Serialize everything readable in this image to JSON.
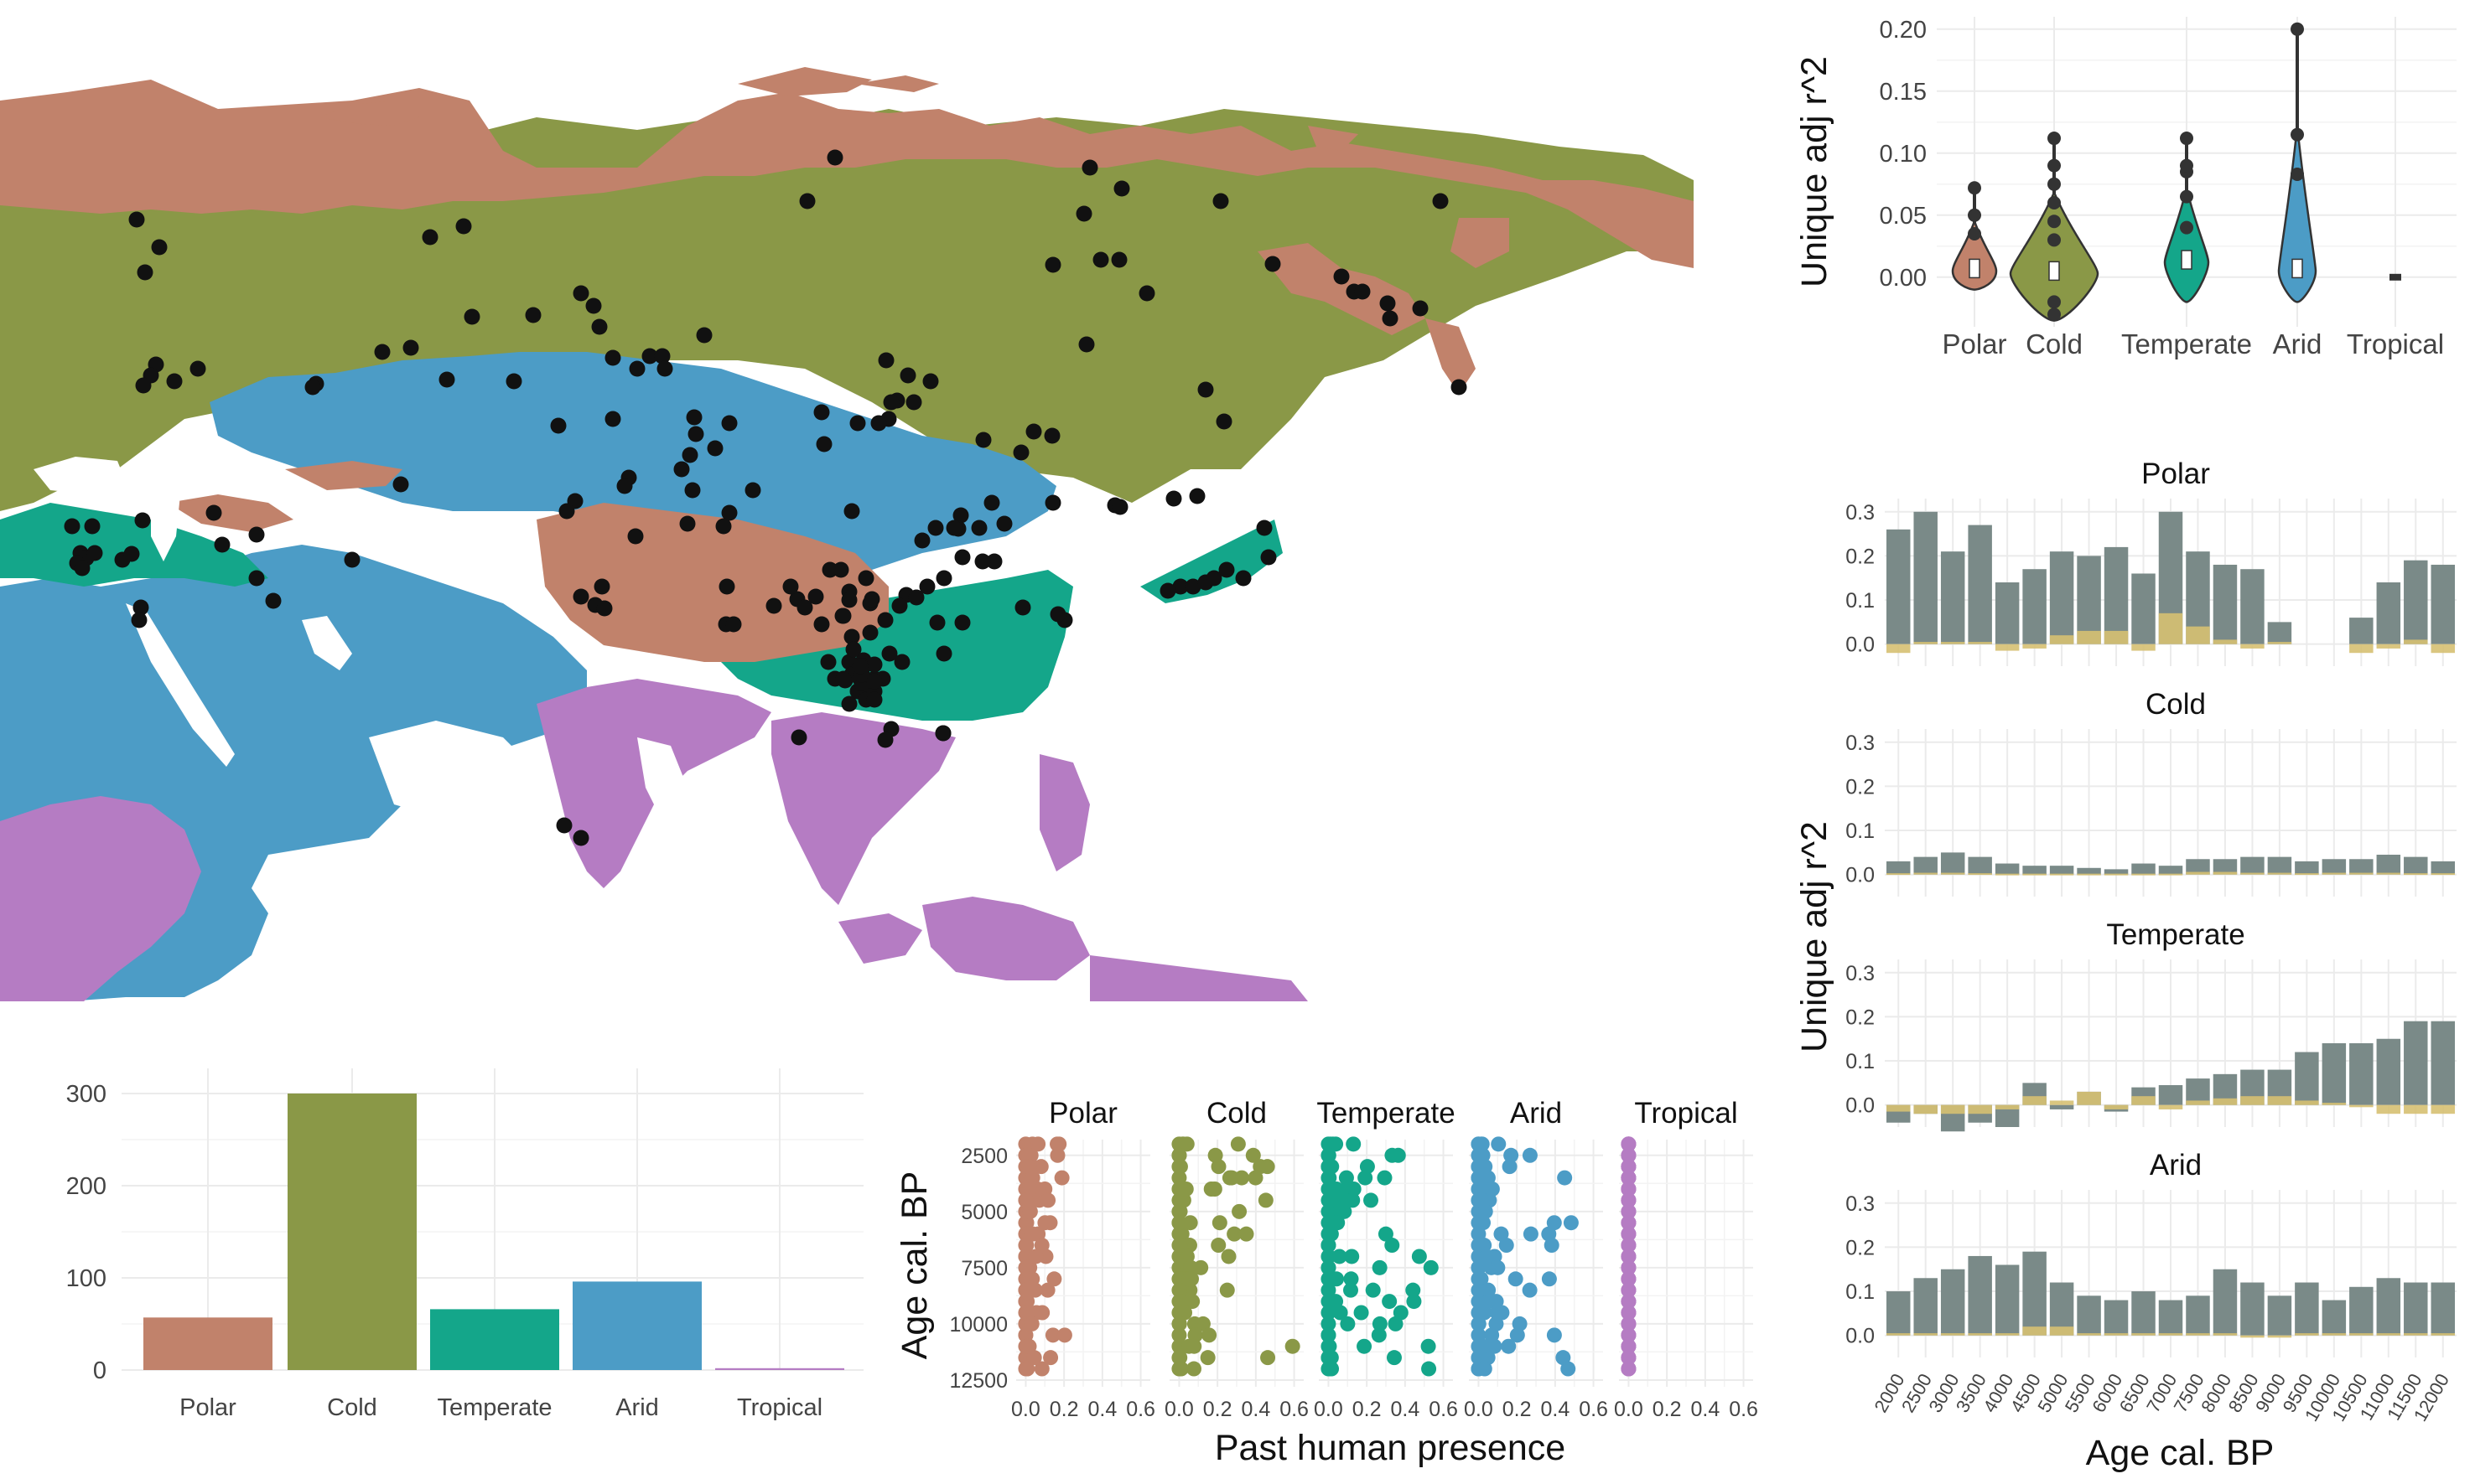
{
  "colors": {
    "Polar": "#c1826b",
    "Cold": "#8a9847",
    "Temperate": "#14a68a",
    "Arid": "#4c9cc6",
    "Tropical": "#b57cc3",
    "gray_bar": "#7a8a88",
    "tan_bar": "#d6c072",
    "points": "#111111"
  },
  "map": {
    "description_free": true
  },
  "chart_data": [
    {
      "id": "violin",
      "type": "violin",
      "ylabel": "Unique adj r^2",
      "categories": [
        "Polar",
        "Cold",
        "Temperate",
        "Arid",
        "Tropical"
      ],
      "yticks": [
        "0.00",
        "0.05",
        "0.10",
        "0.15",
        "0.20"
      ],
      "ylim": [
        -0.04,
        0.21
      ],
      "series": [
        {
          "category": "Polar",
          "median": 0.005,
          "min": -0.01,
          "max": 0.072,
          "outliers": [
            0.035,
            0.05,
            0.072
          ]
        },
        {
          "category": "Cold",
          "median": 0.003,
          "min": -0.035,
          "max": 0.112,
          "outliers": [
            0.03,
            0.045,
            0.06,
            0.075,
            0.09,
            0.112,
            -0.02,
            -0.03
          ]
        },
        {
          "category": "Temperate",
          "median": 0.012,
          "min": -0.02,
          "max": 0.112,
          "outliers": [
            0.04,
            0.065,
            0.085,
            0.09,
            0.112
          ]
        },
        {
          "category": "Arid",
          "median": 0.005,
          "min": -0.02,
          "max": 0.2,
          "outliers": [
            0.083,
            0.115,
            0.2
          ]
        },
        {
          "category": "Tropical",
          "median": 0.0,
          "min": 0.0,
          "max": 0.0,
          "outliers": []
        }
      ]
    },
    {
      "id": "counts",
      "type": "bar",
      "categories": [
        "Polar",
        "Cold",
        "Temperate",
        "Arid",
        "Tropical"
      ],
      "values": [
        57,
        300,
        66,
        96,
        2
      ],
      "yticks": [
        "0",
        "100",
        "200",
        "300"
      ],
      "ylim": [
        0,
        310
      ]
    },
    {
      "id": "presence",
      "type": "scatter",
      "xlabel": "Past human presence",
      "ylabel": "Age cal. BP",
      "panels": [
        "Polar",
        "Cold",
        "Temperate",
        "Arid",
        "Tropical"
      ],
      "xticks": [
        "0.0",
        "0.2",
        "0.4",
        "0.6"
      ],
      "yticks": [
        "2500",
        "5000",
        "7500",
        "10000",
        "12500"
      ],
      "xlim": [
        -0.05,
        0.65
      ],
      "ylim": [
        1800,
        12800
      ],
      "max_x": [
        0.22,
        0.6,
        0.55,
        0.5,
        0.0
      ]
    },
    {
      "id": "timeseries",
      "type": "bar",
      "ylabel": "Unique adj r^2",
      "xlabel": "Age cal. BP",
      "ages": [
        "2000",
        "2500",
        "3000",
        "3500",
        "4000",
        "4500",
        "5000",
        "5500",
        "6000",
        "6500",
        "7000",
        "7500",
        "8000",
        "8500",
        "9000",
        "9500",
        "10000",
        "10500",
        "11000",
        "11500",
        "12000"
      ],
      "yticks": [
        "0.0",
        "0.1",
        "0.2",
        "0.3"
      ],
      "ylim": [
        -0.05,
        0.33
      ],
      "series": [
        {
          "name": "Polar",
          "gray": [
            0.26,
            0.3,
            0.21,
            0.27,
            0.14,
            0.17,
            0.21,
            0.2,
            0.22,
            0.16,
            0.3,
            0.21,
            0.18,
            0.17,
            0.05,
            null,
            null,
            0.06,
            0.14,
            0.19,
            0.18
          ],
          "tan": [
            -0.02,
            0.005,
            0.005,
            0.005,
            -0.015,
            -0.01,
            0.02,
            0.03,
            0.03,
            -0.015,
            0.07,
            0.04,
            0.01,
            -0.01,
            0.005,
            null,
            null,
            -0.02,
            -0.01,
            0.01,
            -0.02
          ]
        },
        {
          "name": "Cold",
          "gray": [
            0.03,
            0.04,
            0.05,
            0.04,
            0.025,
            0.02,
            0.02,
            0.015,
            0.012,
            0.025,
            0.02,
            0.035,
            0.035,
            0.04,
            0.04,
            0.03,
            0.035,
            0.035,
            0.045,
            0.04,
            0.03
          ],
          "tan": [
            0.003,
            0.004,
            0.004,
            0.003,
            0.002,
            0.002,
            0.002,
            0.002,
            0.002,
            0.002,
            0.002,
            0.006,
            0.006,
            0.004,
            0.004,
            0.003,
            0.004,
            0.004,
            0.004,
            0.003,
            0.003
          ]
        },
        {
          "name": "Temperate",
          "gray": [
            -0.04,
            -0.02,
            -0.06,
            -0.04,
            -0.05,
            0.05,
            -0.01,
            0.03,
            -0.015,
            0.04,
            0.045,
            0.06,
            0.07,
            0.08,
            0.08,
            0.12,
            0.14,
            0.14,
            0.15,
            0.19,
            0.19
          ],
          "tan": [
            -0.015,
            -0.02,
            -0.02,
            -0.02,
            -0.01,
            0.02,
            0.01,
            0.03,
            -0.01,
            0.02,
            -0.01,
            0.01,
            0.015,
            0.02,
            0.02,
            0.01,
            0.005,
            -0.005,
            -0.02,
            -0.02,
            -0.02
          ]
        },
        {
          "name": "Arid",
          "gray": [
            0.1,
            0.13,
            0.15,
            0.18,
            0.16,
            0.19,
            0.12,
            0.09,
            0.08,
            0.1,
            0.08,
            0.09,
            0.15,
            0.12,
            0.09,
            0.12,
            0.08,
            0.11,
            0.13,
            0.12,
            0.12
          ],
          "tan": [
            0.005,
            0.005,
            0.005,
            0.005,
            0.005,
            0.02,
            0.02,
            0.005,
            0.005,
            0.005,
            0.005,
            0.005,
            0.005,
            -0.005,
            -0.005,
            0.005,
            0.005,
            0.005,
            0.005,
            0.005,
            0.005
          ]
        }
      ]
    }
  ]
}
